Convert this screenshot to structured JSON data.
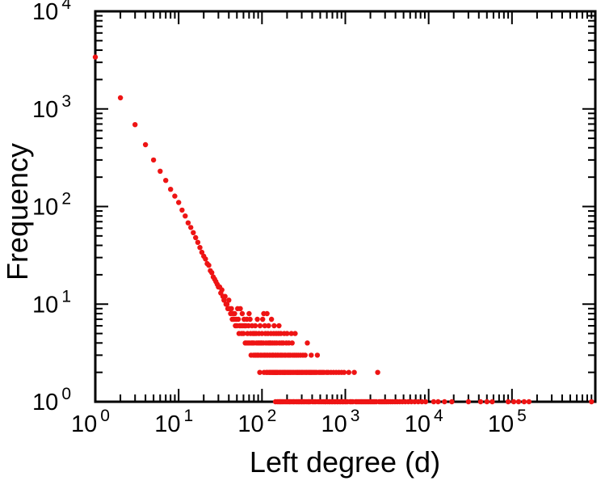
{
  "figure": {
    "background": "#ffffff",
    "axis_color": "#000000"
  },
  "chart_data": {
    "type": "scatter",
    "title": "",
    "xlabel": "Left degree (d)",
    "ylabel": "Frequency",
    "x_scale": "log",
    "y_scale": "log",
    "xlim": [
      1,
      1000000
    ],
    "ylim": [
      1,
      10000
    ],
    "grid": false,
    "legend": "none",
    "tick_base": "10",
    "x_tick_exponents": [
      0,
      1,
      2,
      3,
      4,
      5
    ],
    "y_tick_exponents": [
      0,
      1,
      2,
      3,
      4
    ],
    "marker": {
      "shape": "circle",
      "color": "#ee1414",
      "radius_px": 3.2
    },
    "points": [
      [
        1,
        3400
      ],
      [
        2,
        1300
      ],
      [
        3,
        690
      ],
      [
        4,
        430
      ],
      [
        5,
        300
      ],
      [
        6,
        230
      ],
      [
        7,
        185
      ],
      [
        8,
        150
      ],
      [
        9,
        128
      ],
      [
        10,
        110
      ],
      [
        11,
        92
      ],
      [
        12,
        80
      ],
      [
        13,
        68
      ],
      [
        14,
        61
      ],
      [
        15,
        54
      ],
      [
        16,
        48
      ],
      [
        17,
        43
      ],
      [
        18,
        38
      ],
      [
        19,
        34
      ],
      [
        20,
        31
      ],
      [
        21,
        29
      ],
      [
        22,
        26
      ],
      [
        23,
        25
      ],
      [
        24,
        22
      ],
      [
        25,
        21
      ],
      [
        26,
        19
      ],
      [
        27,
        18
      ],
      [
        28,
        17
      ],
      [
        29,
        16
      ],
      [
        30,
        15
      ],
      [
        31,
        15
      ],
      [
        32,
        13
      ],
      [
        33,
        14
      ],
      [
        34,
        12
      ],
      [
        35,
        11
      ],
      [
        36,
        12
      ],
      [
        37,
        10
      ],
      [
        38,
        10
      ],
      [
        39,
        9
      ],
      [
        40,
        11
      ],
      [
        41,
        9
      ],
      [
        42,
        8
      ],
      [
        43,
        9
      ],
      [
        44,
        7
      ],
      [
        45,
        8
      ],
      [
        46,
        7
      ],
      [
        47,
        8
      ],
      [
        48,
        6
      ],
      [
        49,
        7
      ],
      [
        50,
        6
      ],
      [
        51,
        9
      ],
      [
        52,
        7
      ],
      [
        53,
        5
      ],
      [
        54,
        6
      ],
      [
        55,
        9
      ],
      [
        56,
        6
      ],
      [
        57,
        5
      ],
      [
        58,
        8
      ],
      [
        59,
        6
      ],
      [
        60,
        5
      ],
      [
        61,
        7
      ],
      [
        62,
        6
      ],
      [
        63,
        4
      ],
      [
        64,
        6
      ],
      [
        65,
        4
      ],
      [
        66,
        7
      ],
      [
        67,
        5
      ],
      [
        68,
        4
      ],
      [
        69,
        6
      ],
      [
        70,
        8
      ],
      [
        71,
        4
      ],
      [
        72,
        7
      ],
      [
        73,
        5
      ],
      [
        74,
        3
      ],
      [
        75,
        4
      ],
      [
        76,
        6
      ],
      [
        77,
        4
      ],
      [
        78,
        5
      ],
      [
        79,
        3
      ],
      [
        80,
        4
      ],
      [
        81,
        5
      ],
      [
        82,
        3
      ],
      [
        83,
        6
      ],
      [
        84,
        3
      ],
      [
        85,
        5
      ],
      [
        86,
        4
      ],
      [
        87,
        3
      ],
      [
        88,
        7
      ],
      [
        89,
        3
      ],
      [
        90,
        4
      ],
      [
        91,
        3
      ],
      [
        92,
        5
      ],
      [
        93,
        4
      ],
      [
        94,
        2
      ],
      [
        95,
        6
      ],
      [
        96,
        3
      ],
      [
        97,
        4
      ],
      [
        98,
        3
      ],
      [
        99,
        4
      ],
      [
        100,
        5
      ],
      [
        102,
        7
      ],
      [
        103,
        3
      ],
      [
        104,
        4
      ],
      [
        105,
        8
      ],
      [
        106,
        2
      ],
      [
        107,
        3
      ],
      [
        108,
        6
      ],
      [
        109,
        3
      ],
      [
        110,
        5
      ],
      [
        112,
        4
      ],
      [
        113,
        2
      ],
      [
        114,
        3
      ],
      [
        115,
        8
      ],
      [
        116,
        2
      ],
      [
        117,
        3
      ],
      [
        118,
        5
      ],
      [
        119,
        4
      ],
      [
        120,
        6
      ],
      [
        122,
        2
      ],
      [
        123,
        3
      ],
      [
        124,
        4
      ],
      [
        125,
        2
      ],
      [
        126,
        3
      ],
      [
        127,
        4
      ],
      [
        128,
        5
      ],
      [
        129,
        2
      ],
      [
        130,
        7
      ],
      [
        132,
        3
      ],
      [
        133,
        2
      ],
      [
        134,
        4
      ],
      [
        135,
        3
      ],
      [
        136,
        2
      ],
      [
        137,
        3
      ],
      [
        138,
        5
      ],
      [
        139,
        2
      ],
      [
        140,
        6
      ],
      [
        142,
        4
      ],
      [
        143,
        2
      ],
      [
        144,
        3
      ],
      [
        145,
        1
      ],
      [
        146,
        2
      ],
      [
        147,
        3
      ],
      [
        148,
        5
      ],
      [
        149,
        2
      ],
      [
        150,
        4
      ],
      [
        152,
        2
      ],
      [
        153,
        1
      ],
      [
        154,
        3
      ],
      [
        155,
        2
      ],
      [
        156,
        3
      ],
      [
        158,
        5
      ],
      [
        159,
        1
      ],
      [
        160,
        6
      ],
      [
        162,
        4
      ],
      [
        163,
        2
      ],
      [
        164,
        1
      ],
      [
        165,
        3
      ],
      [
        166,
        2
      ],
      [
        168,
        5
      ],
      [
        169,
        1
      ],
      [
        170,
        3
      ],
      [
        172,
        4
      ],
      [
        173,
        2
      ],
      [
        175,
        1
      ],
      [
        176,
        3
      ],
      [
        178,
        2
      ],
      [
        180,
        4
      ],
      [
        182,
        1
      ],
      [
        184,
        2
      ],
      [
        185,
        5
      ],
      [
        186,
        3
      ],
      [
        188,
        2
      ],
      [
        190,
        1
      ],
      [
        192,
        3
      ],
      [
        194,
        2
      ],
      [
        196,
        4
      ],
      [
        198,
        1
      ],
      [
        200,
        5
      ],
      [
        202,
        2
      ],
      [
        204,
        3
      ],
      [
        206,
        1
      ],
      [
        208,
        2
      ],
      [
        210,
        4
      ],
      [
        212,
        3
      ],
      [
        214,
        1
      ],
      [
        216,
        2
      ],
      [
        218,
        1
      ],
      [
        220,
        3
      ],
      [
        222,
        2
      ],
      [
        225,
        5
      ],
      [
        228,
        1
      ],
      [
        230,
        4
      ],
      [
        232,
        2
      ],
      [
        235,
        3
      ],
      [
        238,
        1
      ],
      [
        240,
        2
      ],
      [
        243,
        1
      ],
      [
        246,
        3
      ],
      [
        250,
        5
      ],
      [
        252,
        2
      ],
      [
        255,
        1
      ],
      [
        258,
        3
      ],
      [
        262,
        2
      ],
      [
        265,
        1
      ],
      [
        268,
        2
      ],
      [
        272,
        3
      ],
      [
        275,
        1
      ],
      [
        278,
        2
      ],
      [
        282,
        1
      ],
      [
        286,
        2
      ],
      [
        290,
        3
      ],
      [
        294,
        1
      ],
      [
        298,
        2
      ],
      [
        302,
        1
      ],
      [
        306,
        2
      ],
      [
        310,
        3
      ],
      [
        315,
        1
      ],
      [
        320,
        2
      ],
      [
        325,
        1
      ],
      [
        330,
        3
      ],
      [
        335,
        2
      ],
      [
        340,
        1
      ],
      [
        345,
        2
      ],
      [
        350,
        4
      ],
      [
        355,
        1
      ],
      [
        360,
        2
      ],
      [
        366,
        1
      ],
      [
        372,
        2
      ],
      [
        378,
        1
      ],
      [
        385,
        2
      ],
      [
        390,
        3
      ],
      [
        398,
        2
      ],
      [
        406,
        1
      ],
      [
        415,
        2
      ],
      [
        424,
        1
      ],
      [
        433,
        2
      ],
      [
        442,
        1
      ],
      [
        452,
        2
      ],
      [
        462,
        3
      ],
      [
        472,
        1
      ],
      [
        483,
        2
      ],
      [
        494,
        1
      ],
      [
        505,
        2
      ],
      [
        517,
        1
      ],
      [
        529,
        2
      ],
      [
        542,
        1
      ],
      [
        555,
        2
      ],
      [
        568,
        1
      ],
      [
        582,
        1
      ],
      [
        596,
        2
      ],
      [
        610,
        1
      ],
      [
        625,
        2
      ],
      [
        640,
        1
      ],
      [
        656,
        1
      ],
      [
        672,
        2
      ],
      [
        688,
        1
      ],
      [
        705,
        1
      ],
      [
        722,
        2
      ],
      [
        740,
        1
      ],
      [
        758,
        1
      ],
      [
        777,
        2
      ],
      [
        796,
        1
      ],
      [
        816,
        1
      ],
      [
        836,
        2
      ],
      [
        857,
        1
      ],
      [
        878,
        1
      ],
      [
        900,
        2
      ],
      [
        922,
        1
      ],
      [
        945,
        1
      ],
      [
        968,
        2
      ],
      [
        992,
        1
      ],
      [
        1020,
        1
      ],
      [
        1060,
        1
      ],
      [
        1100,
        2
      ],
      [
        1140,
        1
      ],
      [
        1180,
        1
      ],
      [
        1230,
        1
      ],
      [
        1280,
        2
      ],
      [
        1330,
        1
      ],
      [
        1380,
        1
      ],
      [
        1440,
        1
      ],
      [
        1500,
        1
      ],
      [
        1560,
        1
      ],
      [
        1620,
        1
      ],
      [
        1690,
        1
      ],
      [
        1760,
        1
      ],
      [
        1830,
        1
      ],
      [
        1910,
        1
      ],
      [
        1990,
        1
      ],
      [
        2070,
        1
      ],
      [
        2160,
        1
      ],
      [
        2250,
        1
      ],
      [
        2350,
        1
      ],
      [
        2450,
        2
      ],
      [
        2550,
        1
      ],
      [
        2660,
        1
      ],
      [
        2770,
        1
      ],
      [
        2890,
        1
      ],
      [
        3010,
        1
      ],
      [
        3140,
        1
      ],
      [
        3300,
        1
      ],
      [
        3500,
        1
      ],
      [
        3700,
        1
      ],
      [
        3950,
        1
      ],
      [
        4200,
        1
      ],
      [
        4500,
        1
      ],
      [
        4850,
        1
      ],
      [
        5250,
        1
      ],
      [
        5700,
        1
      ],
      [
        6200,
        1
      ],
      [
        6800,
        1
      ],
      [
        7500,
        1
      ],
      [
        8300,
        1
      ],
      [
        9200,
        1
      ],
      [
        11500,
        1
      ],
      [
        13000,
        1
      ],
      [
        15500,
        1
      ],
      [
        19000,
        1
      ],
      [
        30000,
        1
      ],
      [
        42000,
        1
      ],
      [
        50000,
        1
      ],
      [
        58000,
        1
      ],
      [
        90000,
        1
      ],
      [
        105000,
        1
      ],
      [
        120000,
        1
      ],
      [
        140000,
        1
      ],
      [
        160000,
        1
      ],
      [
        900000,
        1
      ]
    ]
  }
}
